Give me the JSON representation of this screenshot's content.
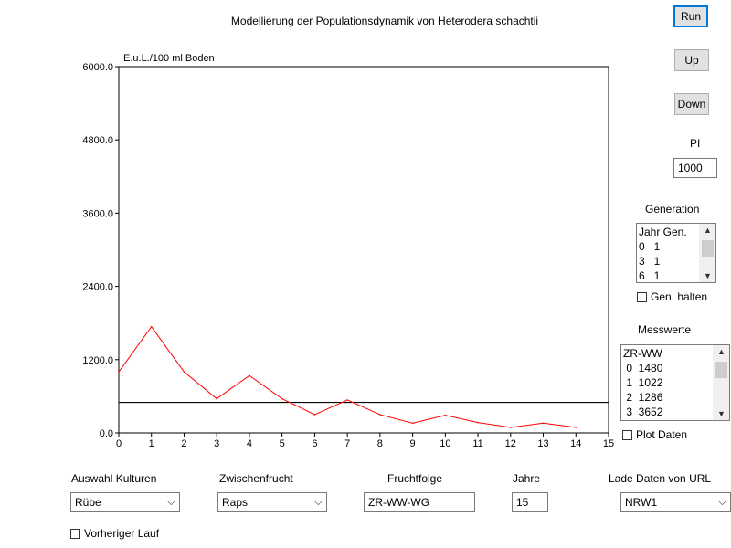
{
  "title": "Modellierung der Populationsdynamik von Heterodera schachtii",
  "buttons": {
    "run": "Run",
    "up": "Up",
    "down": "Down"
  },
  "pi": {
    "label": "PI",
    "value": "1000"
  },
  "generation": {
    "label": "Generation",
    "rows": [
      "Jahr Gen.",
      "0   1",
      "3   1",
      "6   1"
    ],
    "hold_label": "Gen. halten"
  },
  "messwerte": {
    "label": "Messwerte",
    "rows": [
      "ZR-WW",
      " 0  1480",
      " 1  1022",
      " 2  1286",
      " 3  3652"
    ],
    "plot_label": "Plot Daten"
  },
  "bottom": {
    "kulturen_label": "Auswahl Kulturen",
    "kulturen_value": "Rübe",
    "zwischen_label": "Zwischenfrucht",
    "zwischen_value": "Raps",
    "fruchtfolge_label": "Fruchtfolge",
    "fruchtfolge_value": "ZR-WW-WG",
    "jahre_label": "Jahre",
    "jahre_value": "15",
    "url_label": "Lade Daten von URL",
    "url_value": "NRW1",
    "vorheriger_label": "Vorheriger Lauf"
  },
  "chart_data": {
    "type": "line",
    "ylabel": "E.u.L./100 ml Boden",
    "xlabel": "",
    "xlim": [
      0,
      15
    ],
    "ylim": [
      0,
      6000
    ],
    "x_ticks": [
      0,
      1,
      2,
      3,
      4,
      5,
      6,
      7,
      8,
      9,
      10,
      11,
      12,
      13,
      14,
      15
    ],
    "y_ticks": [
      0,
      1200,
      2400,
      3600,
      4800,
      6000
    ],
    "y_tick_labels": [
      "0.0",
      "1200.0",
      "2400.0",
      "3600.0",
      "4800.0",
      "6000.0"
    ],
    "series": [
      {
        "color": "#ff0000",
        "x": [
          0,
          1,
          2,
          3,
          4,
          5,
          6,
          7,
          8,
          9,
          10,
          11,
          12,
          13,
          14
        ],
        "y": [
          1000,
          1740,
          1000,
          560,
          940,
          560,
          300,
          540,
          300,
          160,
          290,
          170,
          90,
          160,
          90
        ]
      }
    ],
    "threshold": {
      "y": 500,
      "color": "#000000"
    },
    "grid": false
  }
}
